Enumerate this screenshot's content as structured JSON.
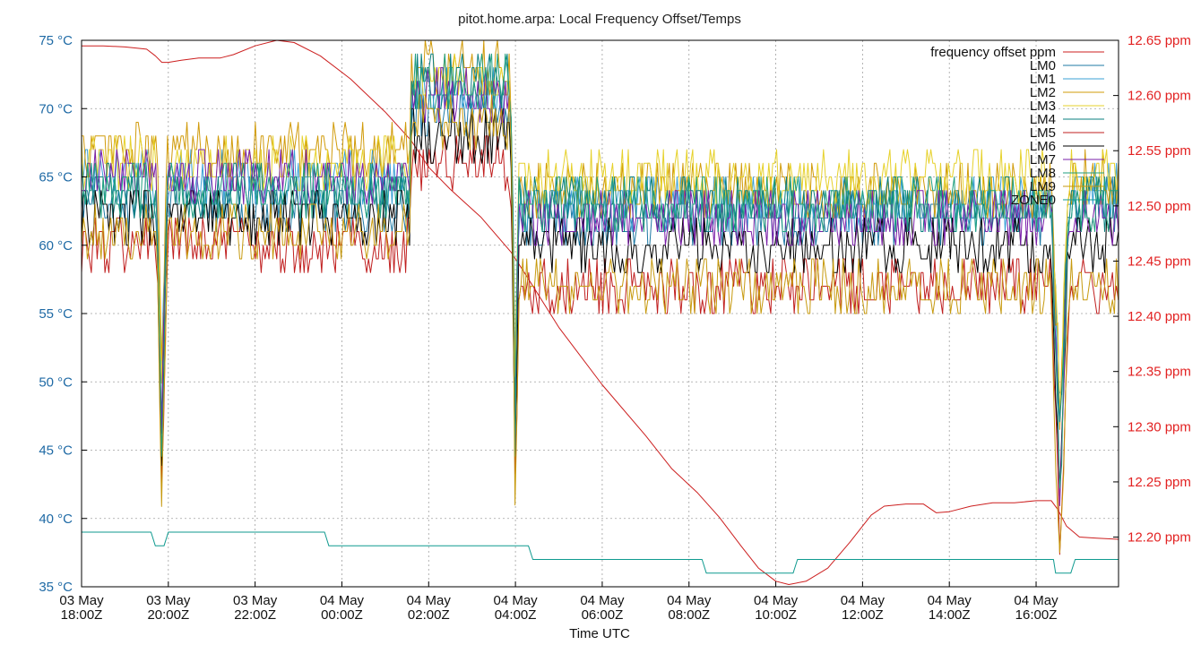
{
  "chart_data": {
    "type": "line",
    "title": "pitot.home.arpa: Local Frequency Offset/Temps",
    "xlabel": "Time UTC",
    "x_range_hours": [
      18.0,
      41.9
    ],
    "x_ticks": [
      {
        "hour": 18,
        "line1": "03 May",
        "line2": "18:00Z"
      },
      {
        "hour": 20,
        "line1": "03 May",
        "line2": "20:00Z"
      },
      {
        "hour": 22,
        "line1": "03 May",
        "line2": "22:00Z"
      },
      {
        "hour": 24,
        "line1": "04 May",
        "line2": "00:00Z"
      },
      {
        "hour": 26,
        "line1": "04 May",
        "line2": "02:00Z"
      },
      {
        "hour": 28,
        "line1": "04 May",
        "line2": "04:00Z"
      },
      {
        "hour": 30,
        "line1": "04 May",
        "line2": "06:00Z"
      },
      {
        "hour": 32,
        "line1": "04 May",
        "line2": "08:00Z"
      },
      {
        "hour": 34,
        "line1": "04 May",
        "line2": "10:00Z"
      },
      {
        "hour": 36,
        "line1": "04 May",
        "line2": "12:00Z"
      },
      {
        "hour": 38,
        "line1": "04 May",
        "line2": "14:00Z"
      },
      {
        "hour": 40,
        "line1": "04 May",
        "line2": "16:00Z"
      }
    ],
    "y_left": {
      "ylim": [
        35,
        75
      ],
      "ticks": [
        35,
        40,
        45,
        50,
        55,
        60,
        65,
        70,
        75
      ],
      "unit": " °C",
      "color": "#1f6aa5"
    },
    "y_right": {
      "ylim": [
        12.155,
        12.65
      ],
      "ticks": [
        "12.20",
        "12.25",
        "12.30",
        "12.35",
        "12.40",
        "12.45",
        "12.50",
        "12.55",
        "12.60",
        "12.65"
      ],
      "suffix": " ppm",
      "color": "#e22222"
    },
    "grid": true,
    "legend_position": "top-right",
    "series": [
      {
        "name": "frequency offset ppm",
        "axis": "right",
        "color": "#cc1f1f",
        "points": [
          [
            18.0,
            12.645
          ],
          [
            18.5,
            12.645
          ],
          [
            19.0,
            12.644
          ],
          [
            19.5,
            12.642
          ],
          [
            19.7,
            12.636
          ],
          [
            19.85,
            12.63
          ],
          [
            20.0,
            12.63
          ],
          [
            20.3,
            12.632
          ],
          [
            20.7,
            12.634
          ],
          [
            21.2,
            12.634
          ],
          [
            21.5,
            12.637
          ],
          [
            22.0,
            12.645
          ],
          [
            22.5,
            12.65
          ],
          [
            22.9,
            12.648
          ],
          [
            23.5,
            12.636
          ],
          [
            24.2,
            12.615
          ],
          [
            25.0,
            12.585
          ],
          [
            25.6,
            12.559
          ],
          [
            26.0,
            12.535
          ],
          [
            26.5,
            12.515
          ],
          [
            27.2,
            12.49
          ],
          [
            27.9,
            12.458
          ],
          [
            28.2,
            12.44
          ],
          [
            29.0,
            12.39
          ],
          [
            30.0,
            12.338
          ],
          [
            31.0,
            12.292
          ],
          [
            31.6,
            12.262
          ],
          [
            32.2,
            12.24
          ],
          [
            32.7,
            12.218
          ],
          [
            33.2,
            12.192
          ],
          [
            33.6,
            12.172
          ],
          [
            34.0,
            12.16
          ],
          [
            34.3,
            12.157
          ],
          [
            34.7,
            12.16
          ],
          [
            35.2,
            12.172
          ],
          [
            35.7,
            12.195
          ],
          [
            36.2,
            12.22
          ],
          [
            36.5,
            12.228
          ],
          [
            37.0,
            12.23
          ],
          [
            37.4,
            12.23
          ],
          [
            37.7,
            12.222
          ],
          [
            38.0,
            12.223
          ],
          [
            38.5,
            12.228
          ],
          [
            39.0,
            12.231
          ],
          [
            39.5,
            12.231
          ],
          [
            40.0,
            12.233
          ],
          [
            40.35,
            12.233
          ],
          [
            40.5,
            12.225
          ],
          [
            40.7,
            12.21
          ],
          [
            41.0,
            12.2
          ],
          [
            41.4,
            12.199
          ],
          [
            41.9,
            12.198
          ]
        ]
      },
      {
        "name": "LM0",
        "axis": "left",
        "color": "#1f7aa5",
        "base": [
          63,
          70,
          62,
          62,
          62,
          63
        ]
      },
      {
        "name": "LM1",
        "axis": "left",
        "color": "#3aa0d6",
        "base": [
          65,
          71,
          63,
          63,
          63,
          64
        ]
      },
      {
        "name": "LM2",
        "axis": "left",
        "color": "#d19b0a",
        "base": [
          67,
          73,
          64,
          64,
          64,
          65
        ]
      },
      {
        "name": "LM3",
        "axis": "left",
        "color": "#e6d12b",
        "base": [
          66,
          72,
          65,
          65,
          65,
          65
        ]
      },
      {
        "name": "LM4",
        "axis": "left",
        "color": "#0a7f7f",
        "base": [
          64,
          72,
          63,
          63,
          63,
          63
        ]
      },
      {
        "name": "LM5",
        "axis": "left",
        "color": "#c01f1f",
        "base": [
          60,
          66,
          57,
          57,
          57,
          57
        ]
      },
      {
        "name": "LM6",
        "axis": "left",
        "color": "#000000",
        "base": [
          62,
          68,
          60,
          60,
          60,
          60
        ]
      },
      {
        "name": "LM7",
        "axis": "left",
        "color": "#7a1fa8",
        "base": [
          65,
          71,
          62,
          62,
          62,
          62
        ]
      },
      {
        "name": "LM8",
        "axis": "left",
        "color": "#1f9f7f",
        "base": [
          64,
          72,
          63,
          63,
          63,
          63
        ]
      },
      {
        "name": "LM9",
        "axis": "left",
        "color": "#c79a0f",
        "base": [
          61,
          69,
          57,
          57,
          57,
          57
        ]
      },
      {
        "name": "ZONE0",
        "axis": "left",
        "color": "#0f9a8f",
        "points": [
          [
            18.0,
            39
          ],
          [
            19.6,
            39
          ],
          [
            19.7,
            38
          ],
          [
            19.9,
            38
          ],
          [
            20.0,
            39
          ],
          [
            21.0,
            39
          ],
          [
            22.0,
            39
          ],
          [
            23.0,
            39
          ],
          [
            23.6,
            39
          ],
          [
            23.7,
            38
          ],
          [
            24.5,
            38
          ],
          [
            25.5,
            38
          ],
          [
            26.5,
            38
          ],
          [
            27.0,
            38
          ],
          [
            27.5,
            38
          ],
          [
            28.3,
            38
          ],
          [
            28.4,
            37
          ],
          [
            29.0,
            37
          ],
          [
            30.0,
            37
          ],
          [
            31.0,
            37
          ],
          [
            32.0,
            37
          ],
          [
            32.3,
            37
          ],
          [
            32.4,
            36
          ],
          [
            33.0,
            36
          ],
          [
            34.0,
            36
          ],
          [
            34.4,
            36
          ],
          [
            34.5,
            37
          ],
          [
            35.0,
            37
          ],
          [
            36.0,
            37
          ],
          [
            37.0,
            37
          ],
          [
            38.0,
            37
          ],
          [
            39.0,
            37
          ],
          [
            40.0,
            37
          ],
          [
            40.4,
            37
          ],
          [
            40.45,
            36
          ],
          [
            40.8,
            36
          ],
          [
            40.9,
            37
          ],
          [
            41.9,
            37
          ]
        ]
      }
    ]
  }
}
